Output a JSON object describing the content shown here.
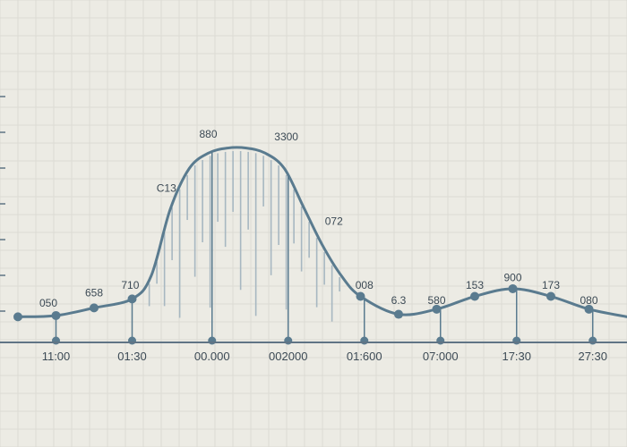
{
  "colors": {
    "background": "#ecebe4",
    "line": "#5a7b8f",
    "axis": "#5f7485",
    "hatch": "#a7b7c1",
    "grid": "#dcdbd4",
    "text": "#3c4a55"
  },
  "chart_data": {
    "type": "line",
    "title": "",
    "xlabel": "",
    "ylabel": "",
    "grid": true,
    "legend": "none",
    "ylim": [
      0,
      10
    ],
    "x_ticks": [
      "11:00",
      "01:30",
      "00.000",
      "002000",
      "01:600",
      "07:000",
      "17:30",
      "27:30"
    ],
    "x_tick_positions": [
      1,
      3,
      5.1,
      7.1,
      9.1,
      11.1,
      13.1,
      15.1
    ],
    "curve": {
      "x": [
        0,
        1,
        2,
        3,
        3.5,
        4,
        4.5,
        5,
        5.5,
        6,
        6.5,
        7,
        7.5,
        8,
        8.5,
        9,
        10,
        11,
        12,
        13,
        14,
        15,
        16
      ],
      "y": [
        1,
        1.05,
        1.35,
        1.7,
        2.6,
        5.2,
        6.8,
        7.4,
        7.6,
        7.6,
        7.4,
        6.8,
        5.3,
        3.8,
        2.6,
        1.8,
        1.1,
        1.3,
        1.8,
        2.1,
        1.8,
        1.3,
        1.0
      ]
    },
    "markers": {
      "x": [
        0,
        1,
        2,
        3,
        9,
        10,
        11,
        12,
        13,
        14,
        15
      ],
      "y": [
        1,
        1.05,
        1.35,
        1.7,
        1.8,
        1.1,
        1.3,
        1.8,
        2.1,
        1.8,
        1.3
      ]
    },
    "stems_x": [
      1,
      3,
      5.1,
      7.1,
      9.1,
      11.1,
      13.1,
      15.1
    ],
    "data_labels": [
      {
        "text": "050",
        "x": 0.8,
        "y": 1.4
      },
      {
        "text": "658",
        "x": 2.0,
        "y": 1.8
      },
      {
        "text": "710",
        "x": 2.95,
        "y": 2.1
      },
      {
        "text": "C13",
        "x": 3.9,
        "y": 5.9
      },
      {
        "text": "880",
        "x": 5.0,
        "y": 8.0
      },
      {
        "text": "3300",
        "x": 7.05,
        "y": 7.9
      },
      {
        "text": "072",
        "x": 8.3,
        "y": 4.6
      },
      {
        "text": "008",
        "x": 9.1,
        "y": 2.1
      },
      {
        "text": "6.3",
        "x": 10.0,
        "y": 1.5
      },
      {
        "text": "580",
        "x": 11.0,
        "y": 1.5
      },
      {
        "text": "153",
        "x": 12.0,
        "y": 2.1
      },
      {
        "text": "900",
        "x": 13.0,
        "y": 2.4
      },
      {
        "text": "173",
        "x": 14.0,
        "y": 2.1
      },
      {
        "text": "080",
        "x": 15.0,
        "y": 1.5
      }
    ]
  }
}
